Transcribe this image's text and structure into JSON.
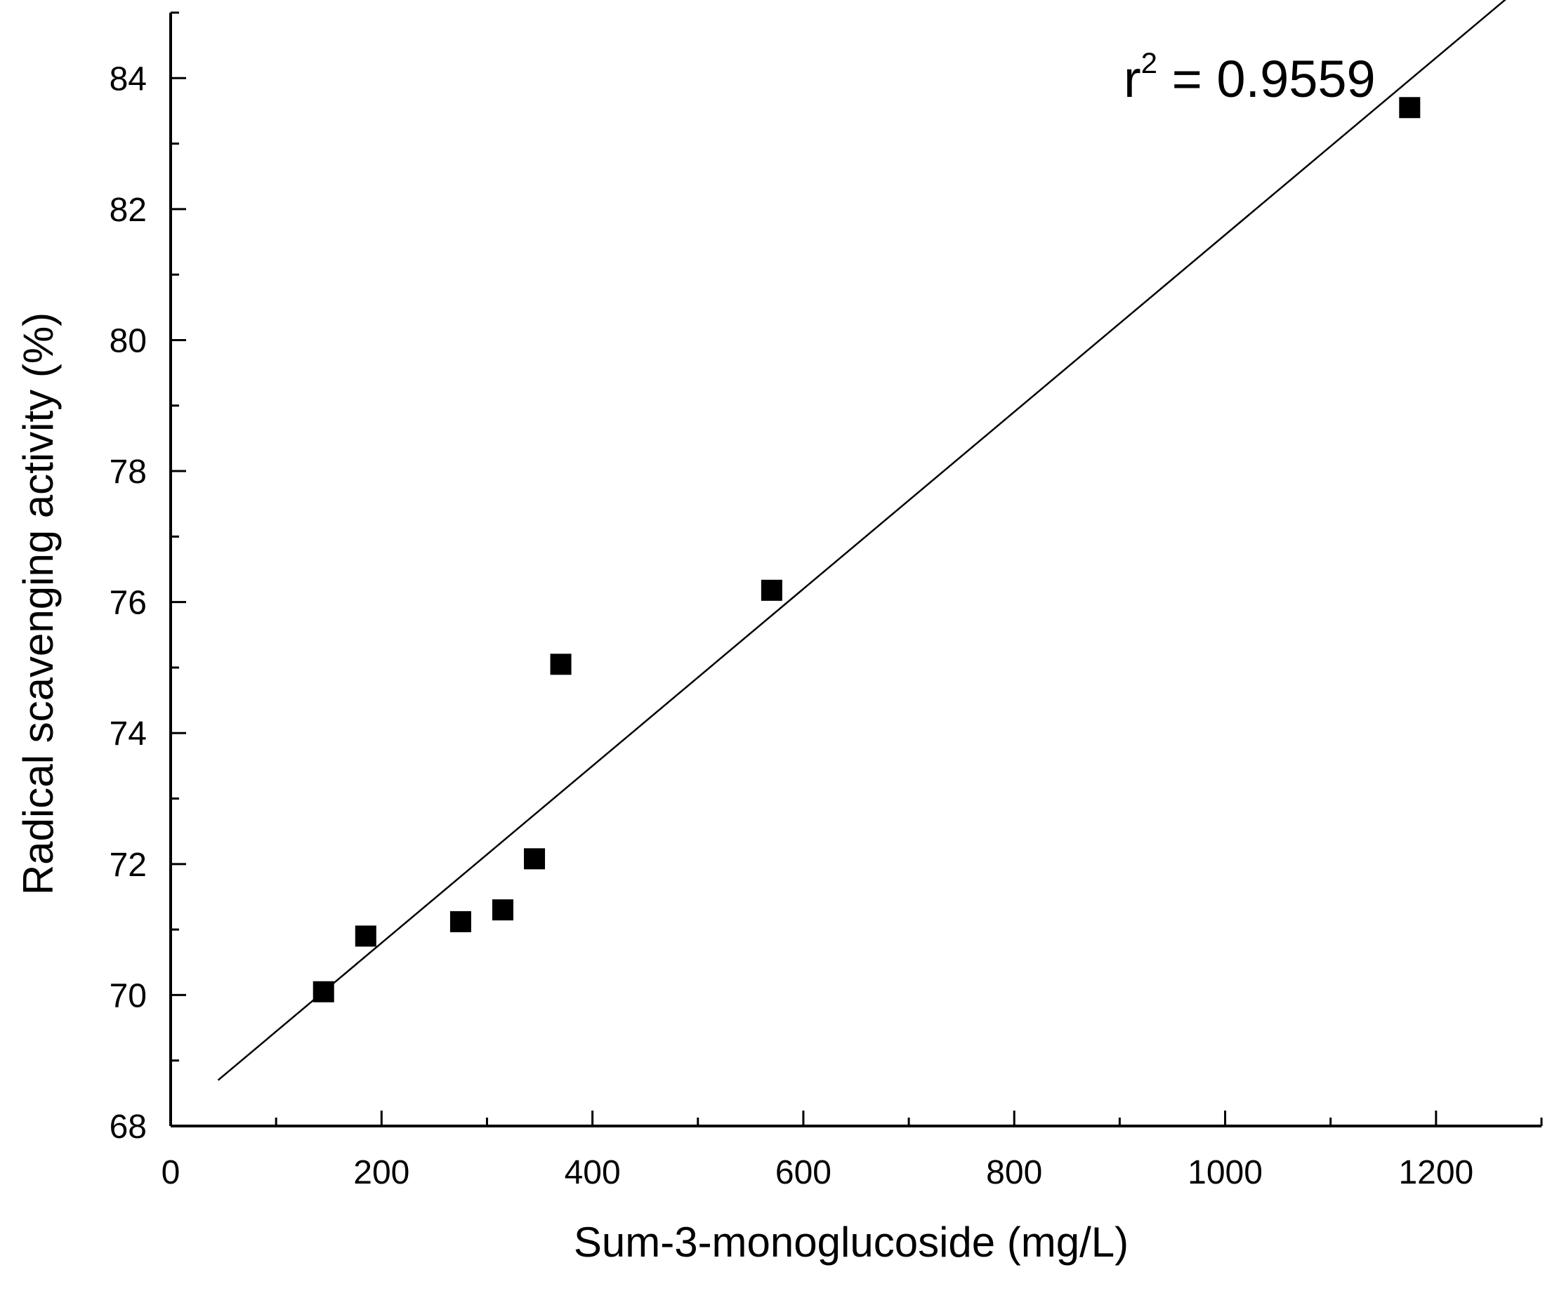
{
  "chart_data": {
    "type": "scatter",
    "title": "",
    "xlabel": "Sum-3-monoglucoside (mg/L)",
    "ylabel": "Radical scavenging activity (%)",
    "xlim": [
      0,
      1300
    ],
    "ylim": [
      68,
      85
    ],
    "x_ticks": [
      0,
      200,
      400,
      600,
      800,
      1000,
      1200
    ],
    "y_ticks": [
      68,
      70,
      72,
      74,
      76,
      78,
      80,
      82,
      84
    ],
    "x_tick_labels": [
      "0",
      "200",
      "400",
      "600",
      "800",
      "1000",
      "1200"
    ],
    "y_tick_labels": [
      "68",
      "70",
      "72",
      "74",
      "76",
      "78",
      "80",
      "82",
      "84"
    ],
    "points": [
      {
        "x": 145,
        "y": 70.05
      },
      {
        "x": 185,
        "y": 70.9
      },
      {
        "x": 275,
        "y": 71.12
      },
      {
        "x": 315,
        "y": 71.3
      },
      {
        "x": 345,
        "y": 72.08
      },
      {
        "x": 370,
        "y": 75.05
      },
      {
        "x": 570,
        "y": 76.18
      },
      {
        "x": 1175,
        "y": 83.55
      }
    ],
    "fit_line": {
      "x": [
        45,
        1325
      ],
      "y": [
        68.7,
        86.0
      ]
    },
    "annotation": {
      "prefix": "r",
      "superscript": "2",
      "text": " = 0.9559"
    },
    "grid": false,
    "marker": "filled-square",
    "colors": {
      "points": "#000000",
      "line": "#000000",
      "axes": "#000000"
    }
  }
}
